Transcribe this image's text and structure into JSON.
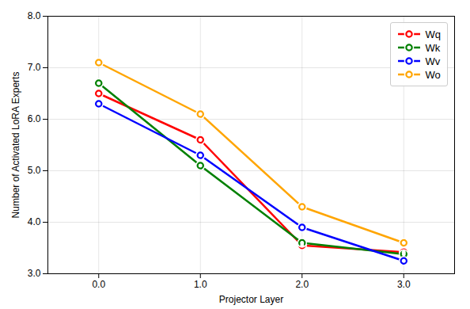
{
  "chart_data": {
    "type": "line",
    "xlabel": "Projector Layer",
    "ylabel": "Number of Activated LoRA Experts",
    "x": [
      0,
      1,
      2,
      3
    ],
    "xlim": [
      -0.5,
      3.5
    ],
    "xticks": [
      0,
      1,
      2,
      3
    ],
    "ylim": [
      3,
      8
    ],
    "yticks": [
      3,
      4,
      5,
      6,
      7,
      8
    ],
    "series": [
      {
        "name": "Wq",
        "color": "#ff0000",
        "values": [
          6.5,
          5.6,
          3.55,
          3.42
        ]
      },
      {
        "name": "Wk",
        "color": "#008000",
        "values": [
          6.7,
          5.1,
          3.6,
          3.38
        ]
      },
      {
        "name": "Wv",
        "color": "#0000ff",
        "values": [
          6.3,
          5.3,
          3.9,
          3.25
        ]
      },
      {
        "name": "Wo",
        "color": "#ffa500",
        "values": [
          7.1,
          6.1,
          4.3,
          3.6
        ]
      }
    ],
    "marker": "circle",
    "grid": true,
    "legend": "upper right"
  }
}
